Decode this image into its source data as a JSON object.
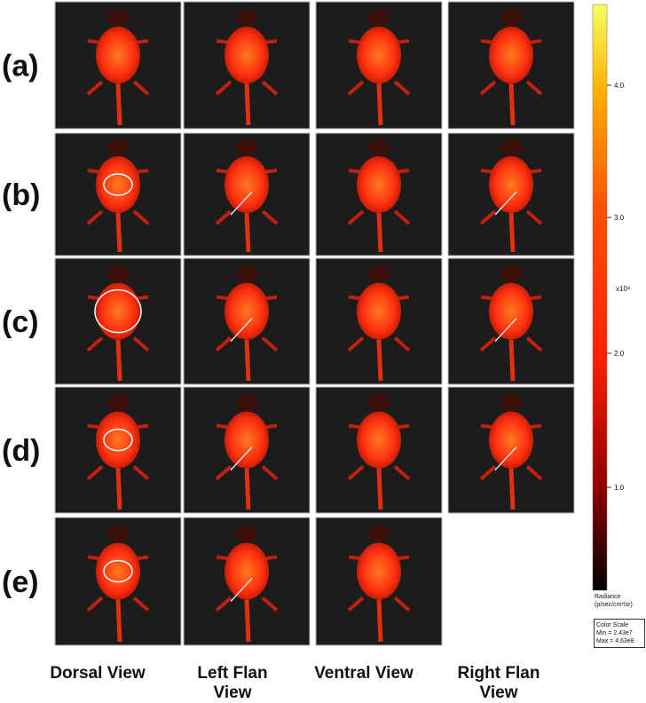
{
  "row_labels": [
    "(a)",
    "(b)",
    "(c)",
    "(d)",
    "(e)"
  ],
  "column_labels": [
    "Dorsal View",
    "Left Flan View",
    "Ventral View",
    "Right Flan View"
  ],
  "color_bar": {
    "ticks": [
      "4.0",
      "3.0",
      "2.0",
      "1.0"
    ],
    "exponent": "x10⁸",
    "unit_label": "Radiance",
    "unit": "(p/sec/cm²/sr)",
    "scale_box": {
      "title": "Color Scale",
      "min": "Min = 2.43e7",
      "max": "Max = 4.63e8"
    }
  }
}
